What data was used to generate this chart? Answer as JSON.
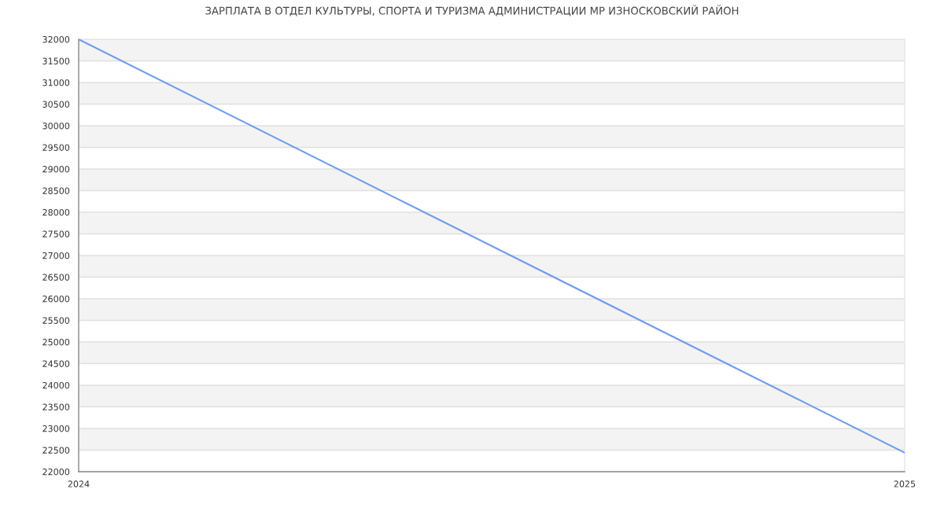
{
  "chart_data": {
    "type": "line",
    "title": "ЗАРПЛАТА В ОТДЕЛ КУЛЬТУРЫ, СПОРТА И ТУРИЗМА АДМИНИСТРАЦИИ МР ИЗНОСКОВСКИЙ РАЙОН",
    "x": [
      2024,
      2025
    ],
    "series": [
      {
        "color": "#6a9cf2",
        "values": [
          32000,
          22440
        ]
      }
    ],
    "xlim": [
      2024,
      2025
    ],
    "xticks": [
      2024,
      2025
    ],
    "ylim": [
      22000,
      32000
    ],
    "yticks": [
      22000,
      22500,
      23000,
      23500,
      24000,
      24500,
      25000,
      25500,
      26000,
      26500,
      27000,
      27500,
      28000,
      28500,
      29000,
      29500,
      30000,
      30500,
      31000,
      31500,
      32000
    ],
    "grid": "y",
    "marker": "none",
    "line_style": "solid",
    "bands": [
      {
        "axis": "y",
        "from": 22500,
        "to": 23000,
        "color": "#f3f3f3"
      },
      {
        "axis": "y",
        "from": 23500,
        "to": 24000,
        "color": "#f3f3f3"
      },
      {
        "axis": "y",
        "from": 24500,
        "to": 25000,
        "color": "#f3f3f3"
      },
      {
        "axis": "y",
        "from": 25500,
        "to": 26000,
        "color": "#f3f3f3"
      },
      {
        "axis": "y",
        "from": 26500,
        "to": 27000,
        "color": "#f3f3f3"
      },
      {
        "axis": "y",
        "from": 27500,
        "to": 28000,
        "color": "#f3f3f3"
      },
      {
        "axis": "y",
        "from": 28500,
        "to": 29000,
        "color": "#f3f3f3"
      },
      {
        "axis": "y",
        "from": 29500,
        "to": 30000,
        "color": "#f3f3f3"
      },
      {
        "axis": "y",
        "from": 30500,
        "to": 31000,
        "color": "#f3f3f3"
      },
      {
        "axis": "y",
        "from": 31500,
        "to": 32000,
        "color": "#f3f3f3"
      }
    ]
  }
}
